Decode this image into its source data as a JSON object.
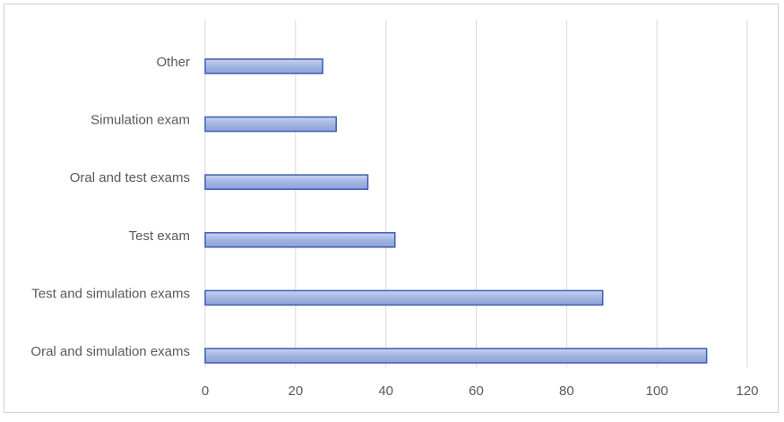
{
  "chart_data": {
    "type": "bar",
    "orientation": "horizontal",
    "categories": [
      "Oral and simulation exams",
      "Test and simulation exams",
      "Test exam",
      "Oral and test exams",
      "Simulation exam",
      "Other"
    ],
    "values": [
      111,
      88,
      42,
      36,
      29,
      26
    ],
    "color": "#a3b4e2",
    "edge_color": "#3b5db4",
    "xlim": [
      0,
      120
    ],
    "xticks": [
      0,
      20,
      40,
      60,
      80,
      100,
      120
    ],
    "grid": true
  }
}
